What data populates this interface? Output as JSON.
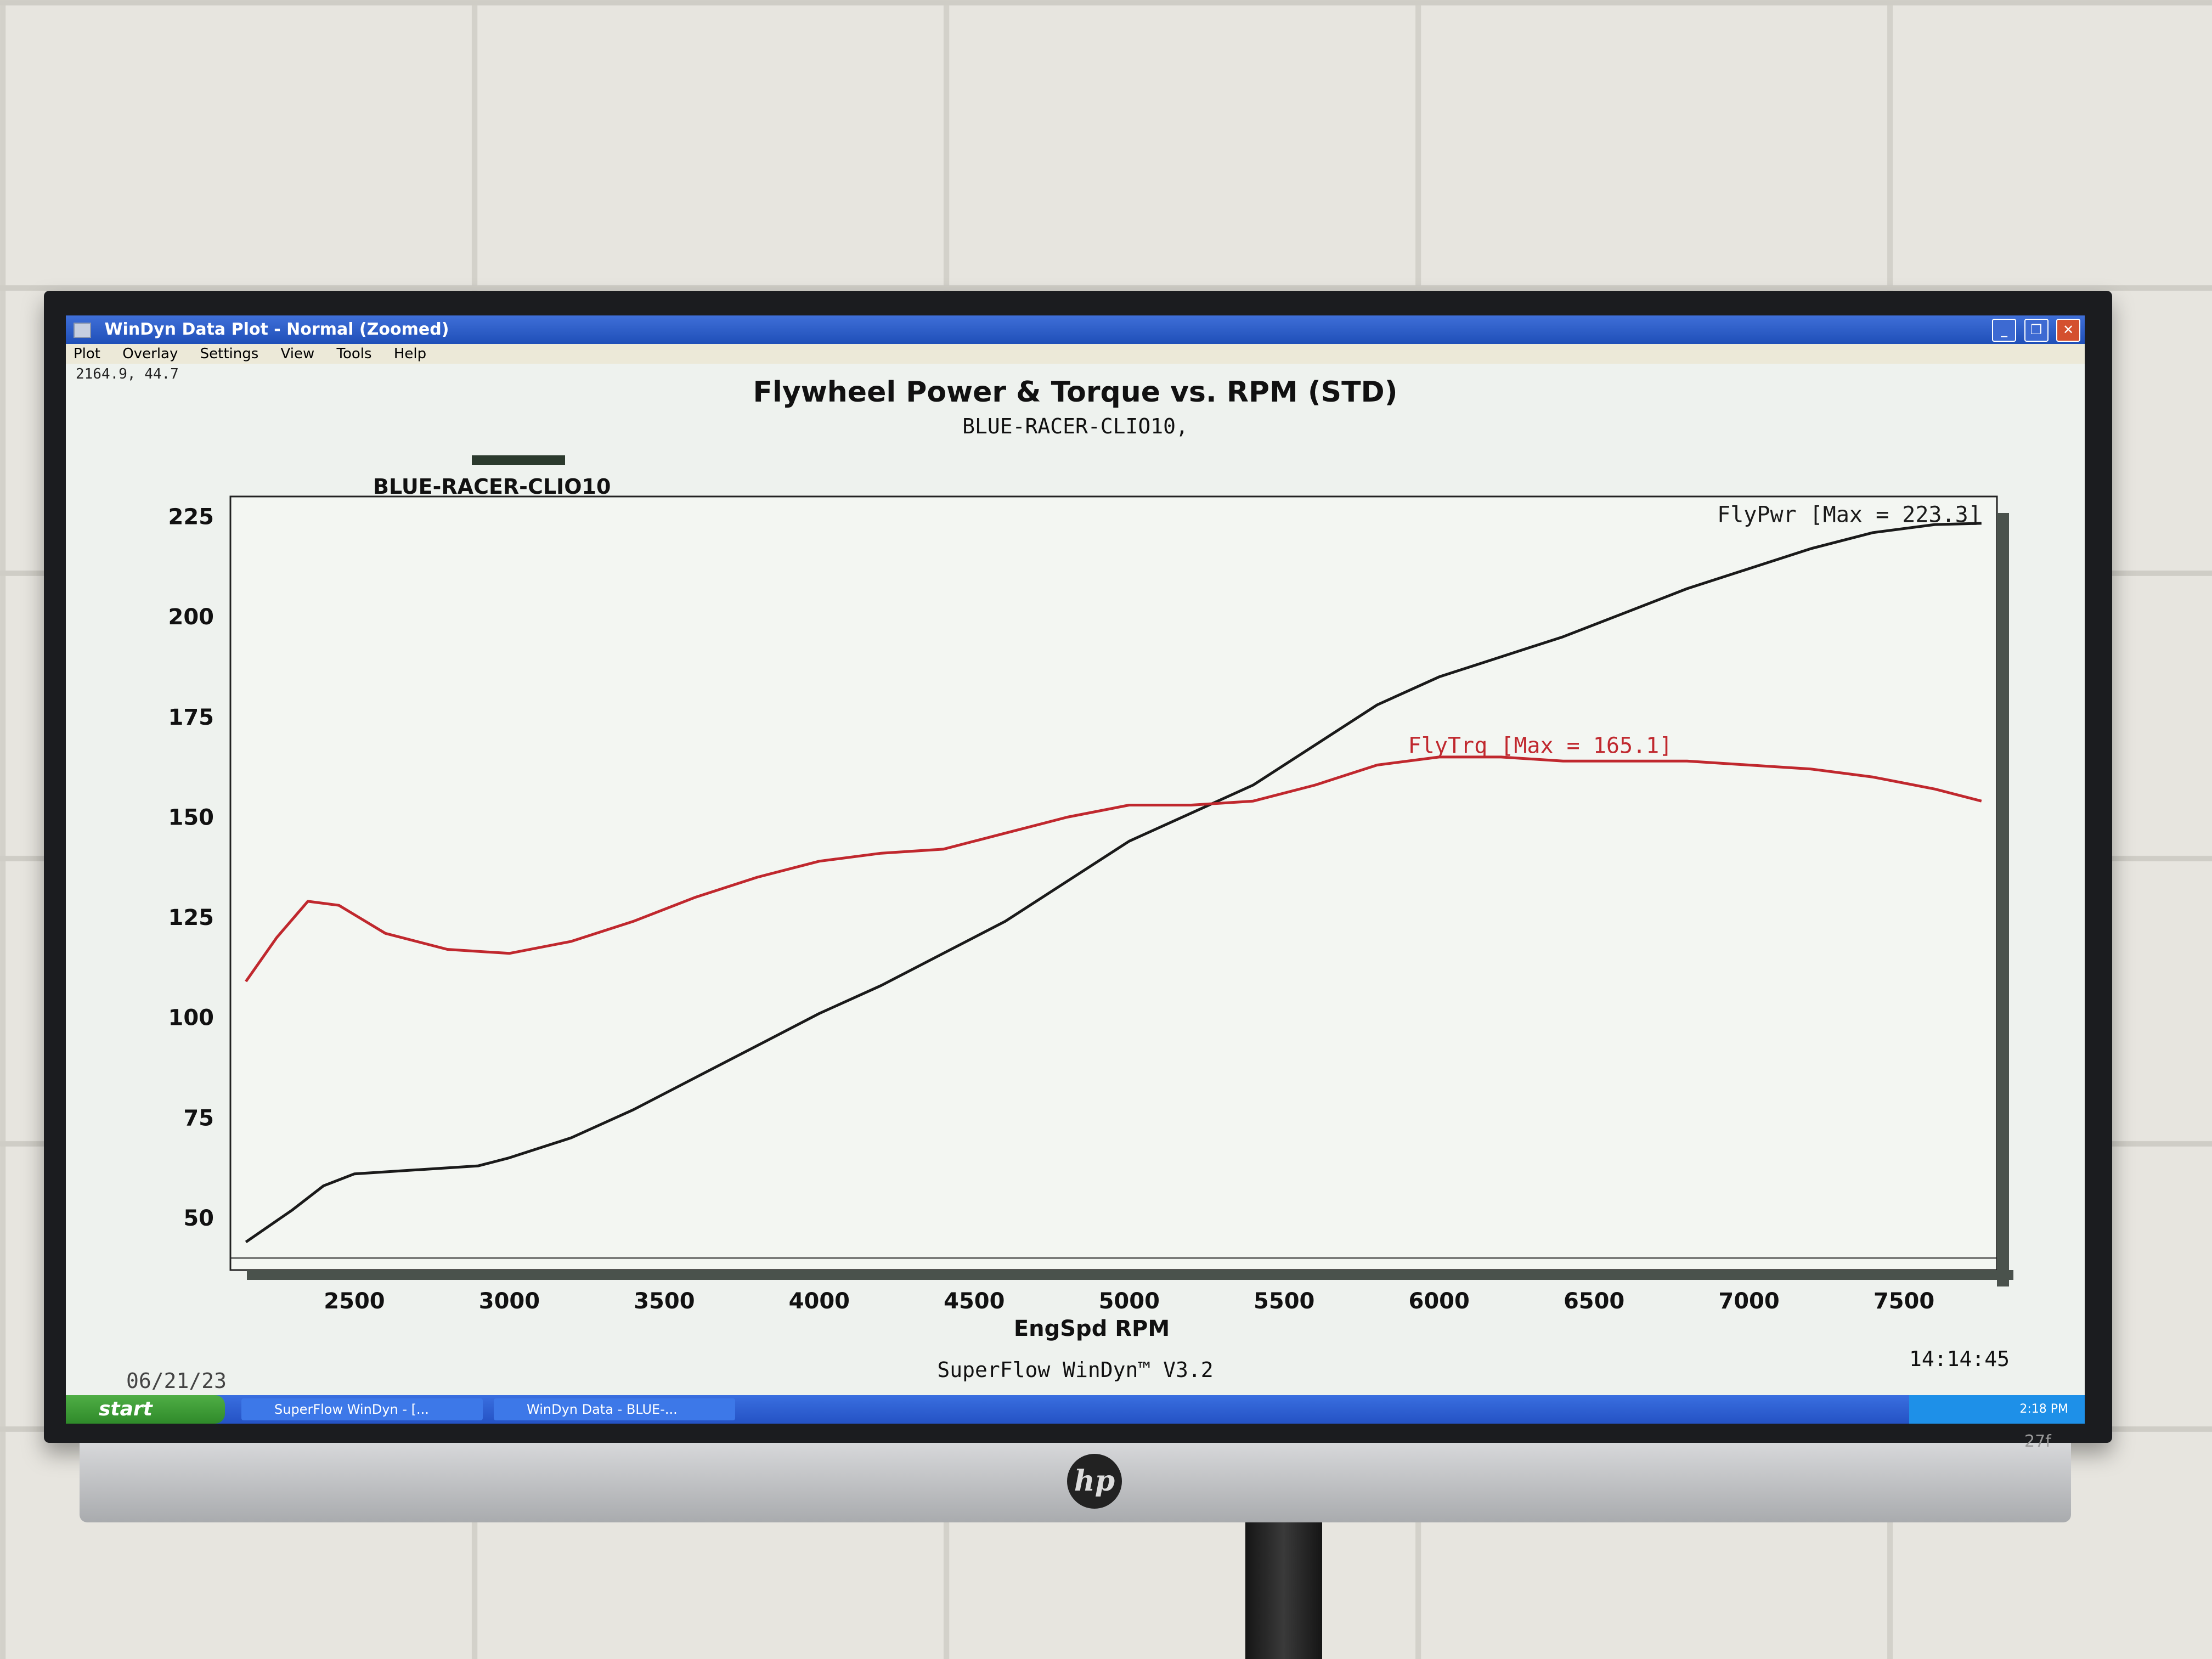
{
  "window": {
    "title": "WinDyn Data Plot - Normal    (Zoomed)",
    "menu": [
      "Plot",
      "Overlay",
      "Settings",
      "View",
      "Tools",
      "Help"
    ],
    "cursor_readout": "2164.9, 44.7"
  },
  "chart_data": {
    "type": "line",
    "title": "Flywheel Power & Torque vs. RPM (STD)",
    "subtitle": "BLUE-RACER-CLIO10,",
    "legend": "BLUE-RACER-CLIO10",
    "xlabel": "EngSpd RPM",
    "ylabel": "",
    "xlim": [
      2100,
      7800
    ],
    "ylim": [
      37,
      230
    ],
    "xticks": [
      2500,
      3000,
      3500,
      4000,
      4500,
      5000,
      5500,
      6000,
      6500,
      7000,
      7500
    ],
    "yticks": [
      50,
      75,
      100,
      125,
      150,
      175,
      200,
      225
    ],
    "grid": true,
    "series": [
      {
        "name": "FlyPwr",
        "label": "FlyPwr [Max = 223.3]",
        "color": "#1a1a1a",
        "x": [
          2150,
          2300,
          2400,
          2500,
          2700,
          2900,
          3000,
          3200,
          3400,
          3600,
          3800,
          4000,
          4200,
          4400,
          4600,
          4800,
          5000,
          5200,
          5400,
          5600,
          5800,
          6000,
          6200,
          6400,
          6600,
          6800,
          7000,
          7200,
          7400,
          7600,
          7750
        ],
        "y": [
          44,
          52,
          58,
          61,
          62,
          63,
          65,
          70,
          77,
          85,
          93,
          101,
          108,
          116,
          124,
          134,
          144,
          151,
          158,
          168,
          178,
          185,
          190,
          195,
          201,
          207,
          212,
          217,
          221,
          223,
          223.3
        ]
      },
      {
        "name": "FlyTrq",
        "label": "FlyTrq [Max = 165.1]",
        "color": "#c0282e",
        "x": [
          2150,
          2250,
          2350,
          2450,
          2600,
          2800,
          3000,
          3200,
          3400,
          3600,
          3800,
          4000,
          4200,
          4400,
          4600,
          4800,
          5000,
          5200,
          5400,
          5600,
          5800,
          6000,
          6200,
          6400,
          6600,
          6800,
          7000,
          7200,
          7400,
          7600,
          7750
        ],
        "y": [
          109,
          120,
          129,
          128,
          121,
          117,
          116,
          119,
          124,
          130,
          135,
          139,
          141,
          142,
          146,
          150,
          153,
          153,
          154,
          158,
          163,
          165,
          165,
          164,
          164,
          164,
          163,
          162,
          160,
          157,
          154
        ]
      }
    ]
  },
  "footer": {
    "date": "06/21/23",
    "software": "SuperFlow WinDyn™ V3.2",
    "time": "14:14:45"
  },
  "taskbar": {
    "start_label": "start",
    "items": [
      "SuperFlow WinDyn - [...",
      "WinDyn Data - BLUE-..."
    ],
    "clock": "2:18 PM"
  },
  "monitor": {
    "brand": "hp",
    "model": "27f"
  }
}
